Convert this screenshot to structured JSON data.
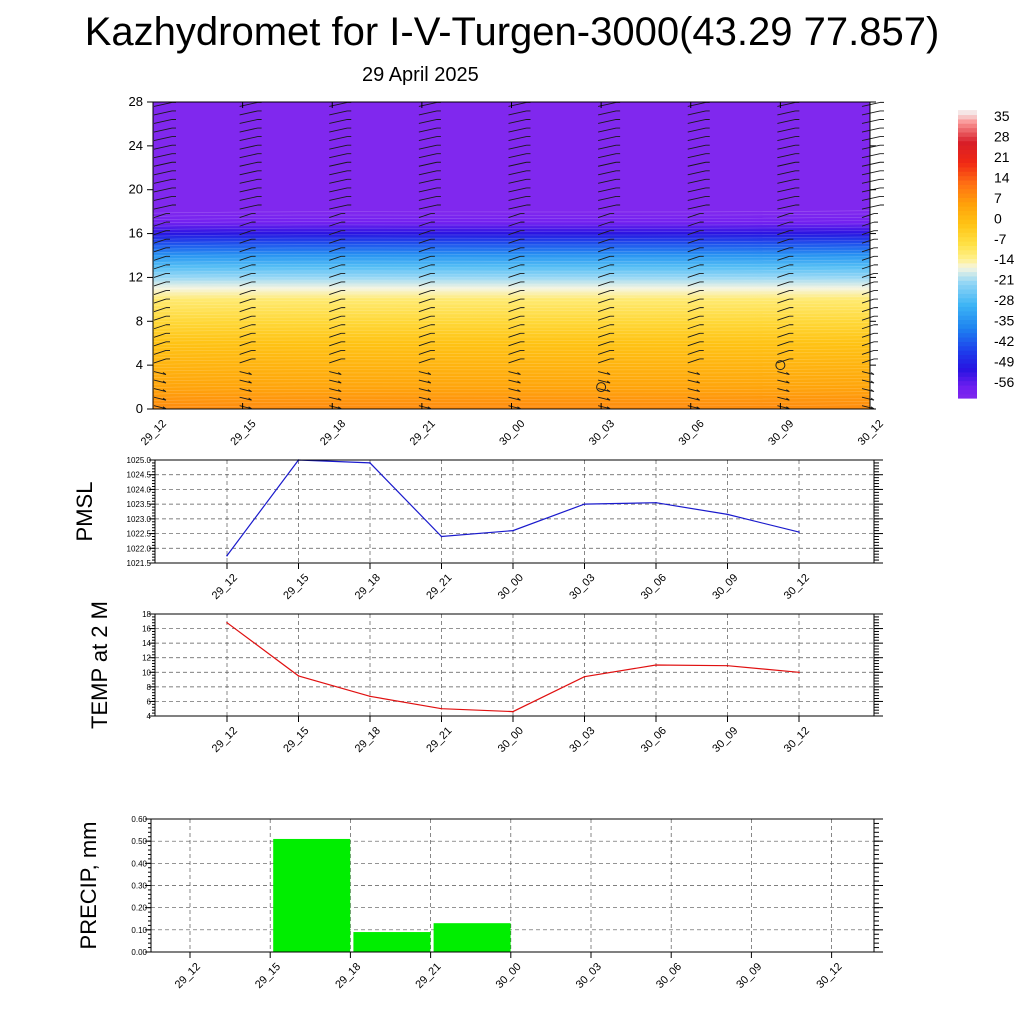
{
  "title": "Kazhydromet for I-V-Turgen-3000(43.29 77.857)",
  "subtitle": "29 April 2025",
  "time_labels": [
    "29_12",
    "29_15",
    "29_18",
    "29_21",
    "30_00",
    "30_03",
    "30_06",
    "30_09",
    "30_12"
  ],
  "colors": {
    "pmsl_line": "#1a1acc",
    "temp_line": "#e01010",
    "precip_bar": "#00ee00"
  },
  "chart_data": [
    {
      "type": "heatmap",
      "name": "temperature-height cross section",
      "x_categories": [
        "29_12",
        "29_15",
        "29_18",
        "29_21",
        "30_00",
        "30_03",
        "30_06",
        "30_09",
        "30_12"
      ],
      "ylim": [
        0,
        28
      ],
      "yticks": [
        0,
        4,
        8,
        12,
        16,
        20,
        24,
        28
      ],
      "colorbar": {
        "labels": [
          "35",
          "28",
          "21",
          "14",
          "7",
          "0",
          "-7",
          "-14",
          "-21",
          "-28",
          "-35",
          "-42",
          "-49",
          "-56"
        ],
        "range": [
          -60,
          38
        ]
      },
      "profile": [
        {
          "h": 0,
          "t": 10
        },
        {
          "h": 2,
          "t": 6
        },
        {
          "h": 4,
          "t": 3
        },
        {
          "h": 6,
          "t": 0
        },
        {
          "h": 8,
          "t": -5
        },
        {
          "h": 10,
          "t": -10
        },
        {
          "h": 11,
          "t": -15
        },
        {
          "h": 12,
          "t": -20
        },
        {
          "h": 13,
          "t": -26
        },
        {
          "h": 14,
          "t": -33
        },
        {
          "h": 15,
          "t": -41
        },
        {
          "h": 16,
          "t": -50
        },
        {
          "h": 17,
          "t": -57
        },
        {
          "h": 18,
          "t": -60
        },
        {
          "h": 28,
          "t": -60
        }
      ],
      "calm_markers": [
        {
          "x": "30_03",
          "h": 2
        },
        {
          "x": "30_09",
          "h": 4
        }
      ]
    },
    {
      "type": "line",
      "ylabel": "PMSL",
      "categories": [
        "29_12",
        "29_15",
        "29_18",
        "29_21",
        "30_00",
        "30_03",
        "30_06",
        "30_09",
        "30_12"
      ],
      "values": [
        1021.75,
        1025.0,
        1024.9,
        1022.4,
        1022.6,
        1023.5,
        1023.55,
        1023.15,
        1022.55
      ],
      "ylim": [
        1021.5,
        1025.0
      ],
      "yticks": [
        "1021.5",
        "1022.0",
        "1022.5",
        "1023.0",
        "1023.5",
        "1024.0",
        "1024.5",
        "1025.0"
      ]
    },
    {
      "type": "line",
      "ylabel": "TEMP at 2 M",
      "categories": [
        "29_12",
        "29_15",
        "29_18",
        "29_21",
        "30_00",
        "30_03",
        "30_06",
        "30_09",
        "30_12"
      ],
      "values": [
        16.8,
        9.5,
        6.7,
        5.0,
        4.6,
        9.4,
        11.0,
        10.9,
        10.0
      ],
      "ylim": [
        4,
        18
      ],
      "yticks": [
        "4",
        "6",
        "8",
        "10",
        "12",
        "14",
        "16",
        "18"
      ]
    },
    {
      "type": "bar",
      "ylabel": "PRECIP, mm",
      "categories": [
        "29_12",
        "29_15",
        "29_18",
        "29_21",
        "30_00",
        "30_03",
        "30_06",
        "30_09",
        "30_12"
      ],
      "values": [
        0,
        0.51,
        0.09,
        0.13,
        0,
        0,
        0,
        0,
        0
      ],
      "ylim": [
        0,
        0.6
      ],
      "yticks": [
        "0.00",
        "0.10",
        "0.20",
        "0.30",
        "0.40",
        "0.50",
        "0.60"
      ]
    }
  ]
}
